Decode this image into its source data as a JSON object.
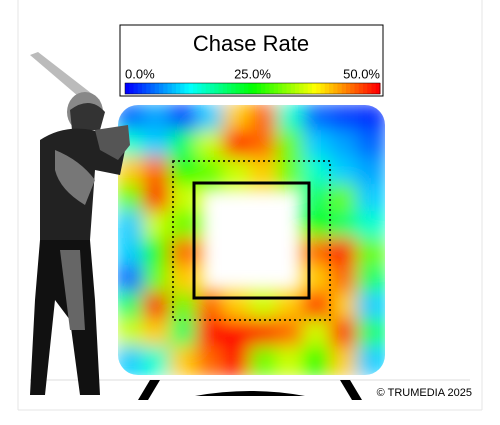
{
  "chart_data": {
    "type": "heatmap",
    "title": "Chase Rate",
    "clim": [
      0,
      50
    ],
    "cticks": [
      {
        "value": 0,
        "label": "0.0%"
      },
      {
        "value": 25,
        "label": "25.0%"
      },
      {
        "value": 50,
        "label": "50.0%"
      }
    ],
    "colormap": [
      "#0000ff",
      "#00ffff",
      "#00ff00",
      "#ffff00",
      "#ff0000"
    ],
    "values": [
      [
        5,
        8,
        3,
        10,
        40,
        45,
        15,
        5,
        3,
        2
      ],
      [
        15,
        10,
        20,
        35,
        50,
        45,
        30,
        10,
        8,
        5
      ],
      [
        40,
        45,
        25,
        30,
        35,
        40,
        30,
        15,
        10,
        8
      ],
      [
        30,
        50,
        35,
        null,
        null,
        null,
        null,
        20,
        30,
        10
      ],
      [
        10,
        35,
        30,
        null,
        null,
        null,
        null,
        25,
        20,
        15
      ],
      [
        10,
        25,
        45,
        null,
        null,
        null,
        null,
        45,
        50,
        30
      ],
      [
        5,
        30,
        40,
        null,
        null,
        null,
        null,
        40,
        45,
        20
      ],
      [
        20,
        50,
        30,
        45,
        40,
        35,
        40,
        50,
        40,
        10
      ],
      [
        35,
        40,
        20,
        50,
        50,
        50,
        45,
        35,
        50,
        20
      ],
      [
        10,
        15,
        40,
        45,
        50,
        30,
        35,
        25,
        40,
        10
      ]
    ],
    "annotation": "© TRUMEDIA 2025"
  }
}
